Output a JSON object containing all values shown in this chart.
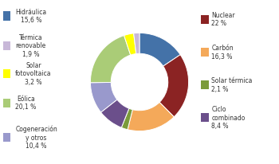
{
  "labels": [
    "Hidráulica",
    "Nuclear",
    "Carbón",
    "Solar térmica",
    "Ciclo\ncombinado",
    "Cogeneración\ny otros",
    "Eólica",
    "Solar\nfotovoltaica",
    "Térmica\nrenovable"
  ],
  "values": [
    15.6,
    22.0,
    16.3,
    2.1,
    8.4,
    10.4,
    20.1,
    3.2,
    1.9
  ],
  "colors": [
    "#4472a8",
    "#8B2323",
    "#F4A95A",
    "#7B9B3A",
    "#6B4F8B",
    "#9999CC",
    "#AACC77",
    "#FFFF00",
    "#C8B8D8"
  ],
  "legend_left": [
    {
      "label": "Hidráulica\n15,6 %",
      "color": "#4472a8"
    },
    {
      "label": "Térmica\nrenovable\n1,9 %",
      "color": "#C8B8D8"
    },
    {
      "label": "Solar\nfotovoltaica\n3,2 %",
      "color": "#FFFF00"
    },
    {
      "label": "Eólica\n20,1 %",
      "color": "#AACC77"
    },
    {
      "label": "Cogeneración\ny otros\n10,4 %",
      "color": "#9999CC"
    }
  ],
  "legend_right": [
    {
      "label": "Nuclear\n22 %",
      "color": "#8B2323"
    },
    {
      "label": "Carbón\n16,3 %",
      "color": "#F4A95A"
    },
    {
      "label": "Solar térmica\n2,1 %",
      "color": "#7B9B3A"
    },
    {
      "label": "Ciclo\ncombinado\n8,4 %",
      "color": "#6B4F8B"
    }
  ],
  "background_color": "#FFFFFF",
  "fontsize": 5.5,
  "donut_width": 0.42
}
